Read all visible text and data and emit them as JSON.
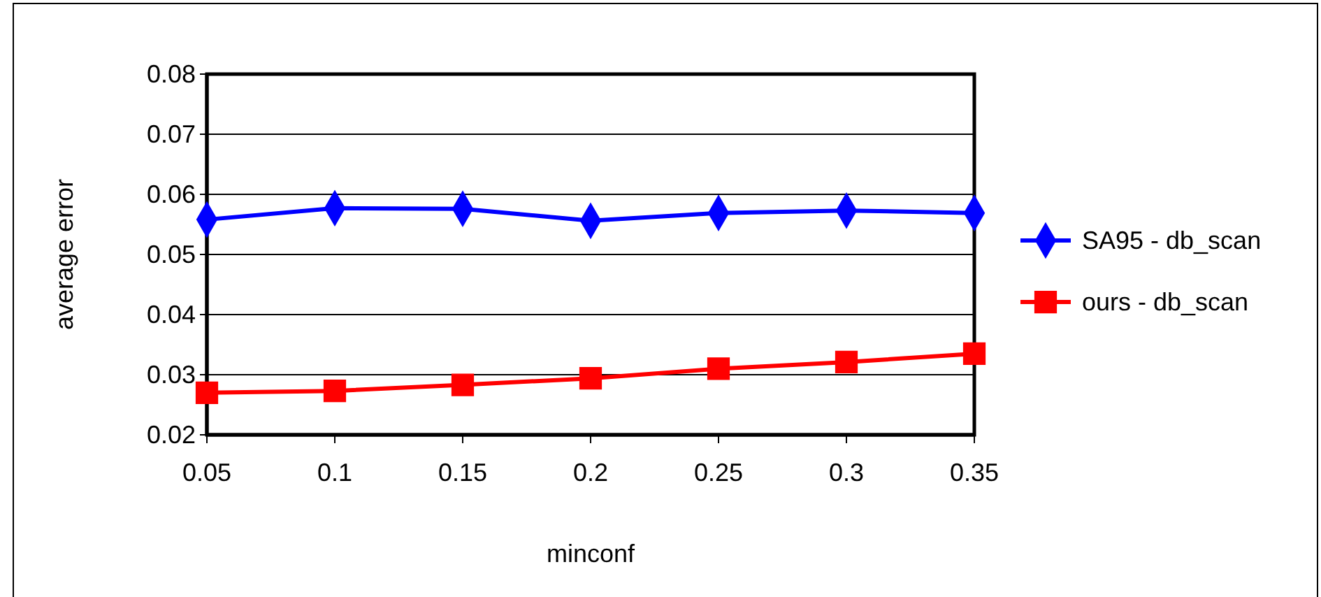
{
  "chart_data": {
    "type": "line",
    "xlabel": "minconf",
    "ylabel": "average error",
    "categories": [
      "0.05",
      "0.1",
      "0.15",
      "0.2",
      "0.25",
      "0.3",
      "0.35"
    ],
    "series": [
      {
        "name": "SA95 - db_scan",
        "color": "#0000ff",
        "marker": "diamond",
        "values": [
          0.0558,
          0.0577,
          0.0576,
          0.0556,
          0.0569,
          0.0573,
          0.0569
        ]
      },
      {
        "name": "ours - db_scan",
        "color": "#ff0000",
        "marker": "square",
        "values": [
          0.027,
          0.0273,
          0.0283,
          0.0294,
          0.031,
          0.0321,
          0.0335
        ]
      }
    ],
    "ylim": [
      0.02,
      0.08
    ],
    "yticks": [
      0.02,
      0.03,
      0.04,
      0.05,
      0.06,
      0.07,
      0.08
    ],
    "grid": "y",
    "legend": "right"
  }
}
